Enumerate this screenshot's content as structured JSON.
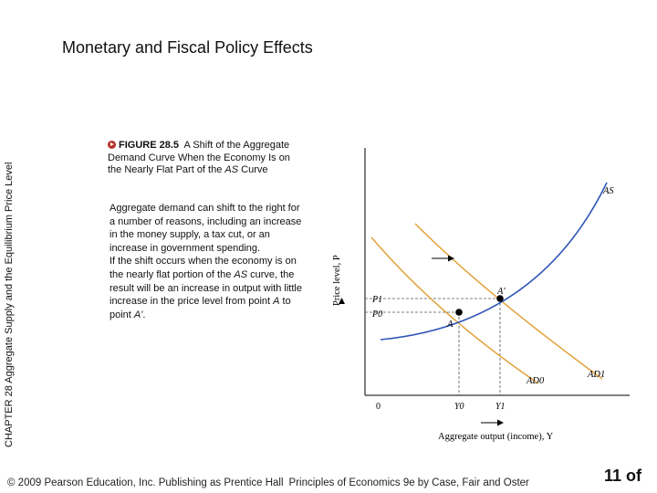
{
  "side_label": "CHAPTER 28 Aggregate Supply and the Equilibrium Price Level",
  "slide_title": "Monetary and Fiscal Policy Effects",
  "caption": {
    "figure_number": "FIGURE 28.5",
    "text_before": "A Shift of the Aggregate Demand Curve When the Economy Is on the Nearly Flat Part of the ",
    "italic": "AS",
    "text_after": " Curve"
  },
  "body": {
    "p1": "Aggregate demand can shift to the right for a number of reasons, including an increase in the money supply, a tax cut, or an increase in government spending.",
    "p2_part1": "If the shift occurs when the economy is on the nearly flat portion of the ",
    "p2_italic1": "AS",
    "p2_part2": " curve, the result will be an increase in output with little increase in the price level from point ",
    "p2_italic2": "A",
    "p2_part3": " to point ",
    "p2_italic3": "A'",
    "p2_part4": "."
  },
  "chart_data": {
    "type": "line",
    "xlabel": "Aggregate output (income), Y",
    "ylabel": "Price level, P",
    "origin_label": "0",
    "x_ticks": [
      "Y0",
      "Y1"
    ],
    "y_ticks": [
      "P1",
      "P0"
    ],
    "series": [
      {
        "name": "AS"
      },
      {
        "name": "AD0"
      },
      {
        "name": "AD1"
      }
    ],
    "points": [
      {
        "name": "A",
        "x": "Y0",
        "y": "P0"
      },
      {
        "name": "A'",
        "x": "Y1",
        "y": "P1"
      }
    ],
    "colors": {
      "as_curve": "#2f56b8",
      "ad_curves": "#e2a23a",
      "guides": "#555555"
    }
  },
  "footer": {
    "copyright": "© 2009 Pearson Education, Inc. Publishing as Prentice Hall",
    "book": "Principles of Economics 9e by Case, Fair and Oster"
  },
  "page_number": "11 of"
}
